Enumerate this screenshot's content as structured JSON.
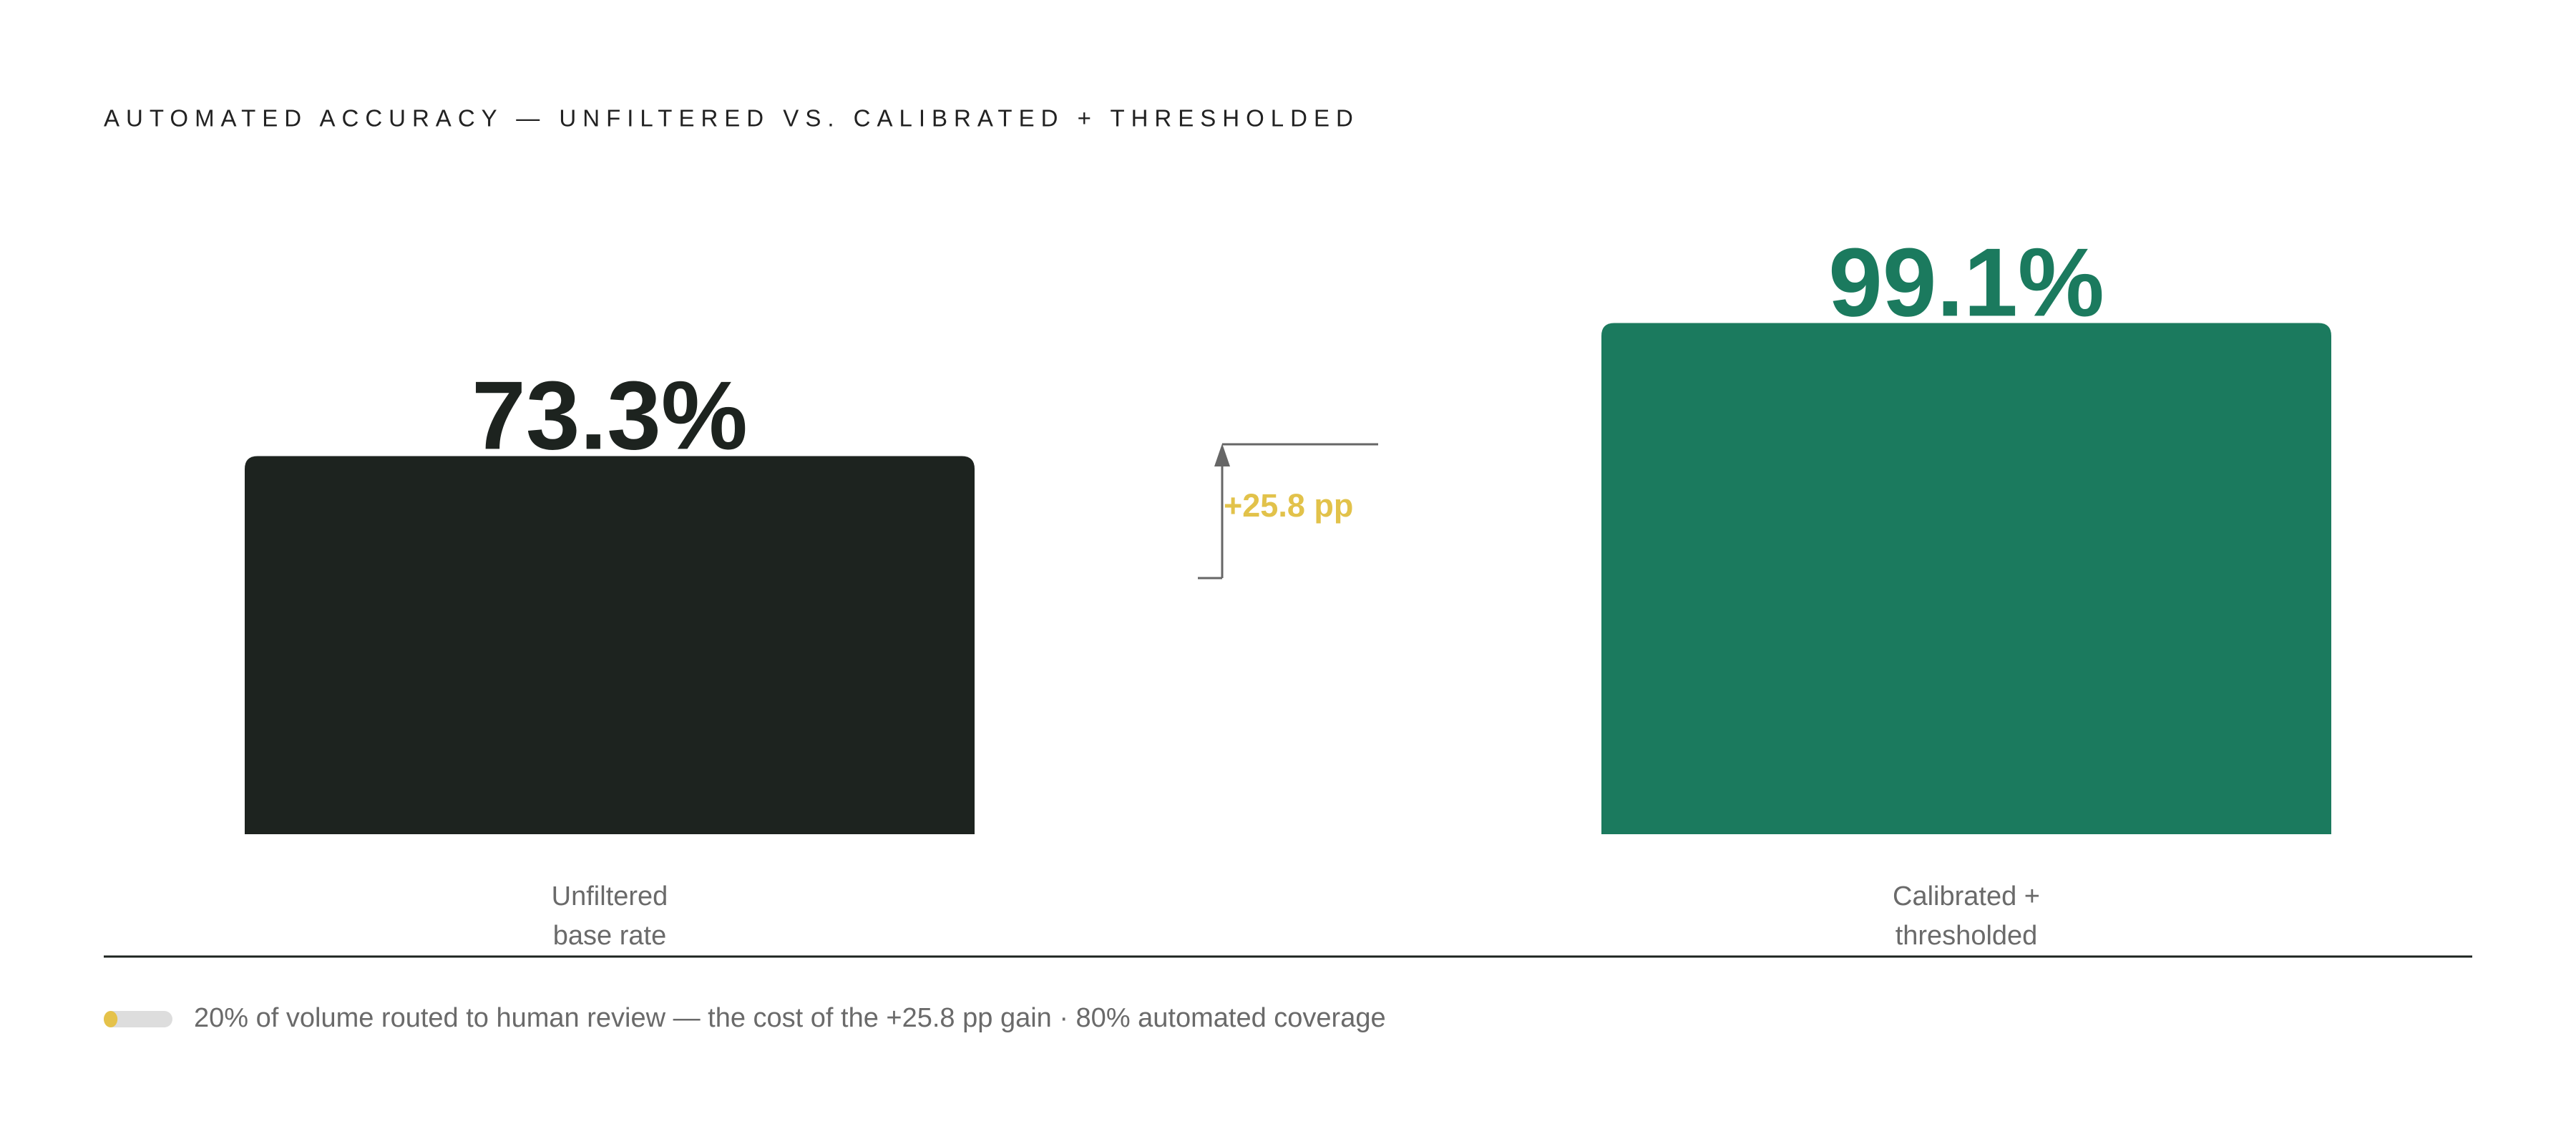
{
  "chart_data": {
    "type": "bar",
    "title": "AUTOMATED ACCURACY — UNFILTERED VS. CALIBRATED + THRESHOLDED",
    "categories": [
      "Unfiltered base rate",
      "Calibrated + thresholded"
    ],
    "values": [
      73.3,
      99.1
    ],
    "value_labels": [
      "73.3%",
      "99.1%"
    ],
    "colors": [
      "#1d231f",
      "#1b7a5e"
    ],
    "ylim": [
      0,
      100
    ],
    "annotation": "+25.8 pp",
    "note": "20% of volume routed to human review — the cost of the +25.8 pp gain · 80% automated coverage",
    "note_bar": {
      "value": 20,
      "range": [
        0,
        100
      ],
      "color": "#e5c24a"
    }
  }
}
